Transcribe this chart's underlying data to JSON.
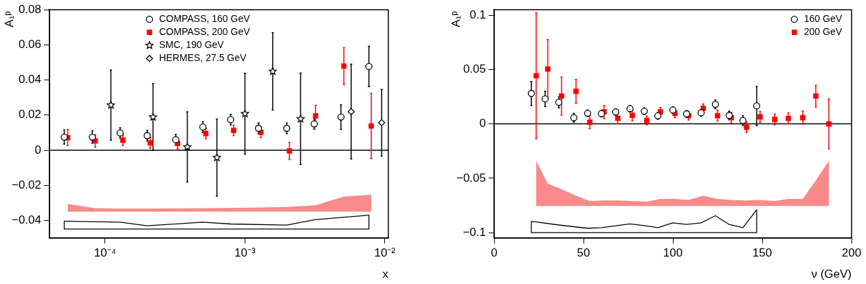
{
  "chart_data": [
    {
      "type": "scatter",
      "xlabel": "x",
      "ylabel": "A₁ᵖ",
      "log": "x",
      "xlim": [
        4e-05,
        0.0106
      ],
      "ylim": [
        -0.05,
        0.08
      ],
      "xticks": [
        {
          "value": 0.0001,
          "label": "10⁻⁴"
        },
        {
          "value": 0.001,
          "label": "10⁻³"
        },
        {
          "value": 0.01,
          "label": "10⁻²"
        }
      ],
      "yticks": [
        {
          "value": -0.04,
          "label": "−0.04"
        },
        {
          "value": -0.02,
          "label": "−0.02"
        },
        0,
        0.02,
        0.04,
        0.06,
        0.08
      ],
      "legend": "top",
      "ref_lines": [
        {
          "axis": "y",
          "value": 0
        }
      ],
      "series": [
        {
          "name": "COMPASS, 160 GeV",
          "color": "#000000",
          "marker": "circle",
          "x": [
            5.1e-05,
            8.1e-05,
            0.000128,
            0.0002,
            0.00032,
            0.0005,
            0.00079,
            0.00125,
            0.00199,
            0.00313,
            0.00486,
            0.0077
          ],
          "values": [
            0.0075,
            0.0075,
            0.0098,
            0.0083,
            0.006,
            0.0132,
            0.0174,
            0.0125,
            0.0125,
            0.015,
            0.0189,
            0.0477
          ],
          "errors": [
            0.004,
            0.0035,
            0.003,
            0.003,
            0.003,
            0.003,
            0.003,
            0.003,
            0.003,
            0.003,
            0.007,
            0.0115
          ]
        },
        {
          "name": "COMPASS, 200 GeV",
          "color": "#ff0000",
          "marker": "square",
          "x": [
            5.4e-05,
            8.5e-05,
            0.000134,
            0.00021,
            0.00033,
            0.000525,
            0.00083,
            0.0013,
            0.00208,
            0.0032,
            0.0051,
            0.008
          ],
          "values": [
            0.0072,
            0.0053,
            0.0057,
            0.0042,
            0.0038,
            0.0094,
            0.0113,
            0.0102,
            -0.0004,
            0.0196,
            0.0479,
            0.0138
          ],
          "errors": [
            0.0045,
            0.0035,
            0.003,
            0.003,
            0.003,
            0.003,
            0.003,
            0.003,
            0.0049,
            0.006,
            0.0105,
            0.0186
          ]
        },
        {
          "name": "SMC, 190 GeV",
          "color": "#000000",
          "marker": "star",
          "x": [
            0.00011,
            0.00022,
            0.000387,
            0.00063,
            0.001,
            0.00158,
            0.0025
          ],
          "values": [
            0.0257,
            0.0189,
            0.0019,
            -0.0042,
            0.0208,
            0.0449,
            0.0179
          ],
          "errors": [
            0.02,
            0.019,
            0.02,
            0.022,
            0.023,
            0.022,
            0.026
          ]
        },
        {
          "name": "HERMES, 27.5 GeV",
          "color": "#000000",
          "marker": "diamond",
          "x": [
            0.00575,
            0.0095
          ],
          "values": [
            0.022,
            0.0157
          ],
          "errors": [
            0.027,
            0.019
          ]
        },
        {
          "type": "area",
          "color": "#f88a8a",
          "x": [
            5.4e-05,
            8.5e-05,
            0.000134,
            0.00021,
            0.00033,
            0.000525,
            0.00083,
            0.0013,
            0.00208,
            0.0032,
            0.0051,
            0.008
          ],
          "values": [
            null,
            null,
            null,
            null,
            null,
            null,
            null,
            null,
            null,
            null,
            null,
            null
          ],
          "upper": [
            -0.0306,
            -0.033,
            -0.0332,
            -0.0332,
            -0.0331,
            -0.033,
            -0.0328,
            -0.0326,
            -0.0322,
            -0.0313,
            -0.0264,
            -0.0253
          ],
          "lower": [
            -0.035,
            -0.035,
            -0.035,
            -0.035,
            -0.035,
            -0.035,
            -0.035,
            -0.035,
            -0.035,
            -0.035,
            -0.035,
            -0.035
          ]
        },
        {
          "type": "line",
          "color": "#000000",
          "x": [
            5.1e-05,
            0.000128,
            0.0002,
            0.0005,
            0.00079,
            0.00199,
            0.00313,
            0.0077
          ],
          "values": [
            -0.0404,
            -0.041,
            -0.043,
            -0.041,
            -0.042,
            -0.0426,
            -0.0396,
            -0.037
          ]
        },
        {
          "type": "line",
          "color": "#000000",
          "x": [
            5.1e-05,
            0.0077
          ],
          "values": [
            -0.0449,
            -0.0449
          ]
        },
        {
          "type": "line",
          "color": "#000000",
          "x": [
            5.1e-05,
            5.1e-05
          ],
          "values": [
            -0.0404,
            -0.0449
          ]
        },
        {
          "type": "line",
          "color": "#000000",
          "x": [
            0.0077,
            0.0077
          ],
          "values": [
            -0.037,
            -0.0449
          ]
        }
      ]
    },
    {
      "type": "scatter",
      "xlabel": "ν (GeV)",
      "ylabel": "A₁ᵖ",
      "xlim": [
        0,
        200
      ],
      "ylim": [
        -0.105,
        0.105
      ],
      "xticks": [
        0,
        50,
        100,
        150,
        200
      ],
      "yticks": [
        {
          "value": -0.1,
          "label": "−0.1"
        },
        {
          "value": -0.05,
          "label": "−0.05"
        },
        0,
        0.05,
        0.1
      ],
      "legend": "top right",
      "ref_lines": [
        {
          "axis": "y",
          "value": 0
        }
      ],
      "series": [
        {
          "name": "160 GeV",
          "color": "#000000",
          "marker": "circle",
          "x": [
            20.8,
            28.5,
            36.2,
            44.6,
            52.3,
            60,
            68,
            76,
            84,
            91.6,
            100,
            107.7,
            115.8,
            123.8,
            131.5,
            139.2,
            146.9
          ],
          "values": [
            0.028,
            0.023,
            0.0198,
            0.0057,
            0.0098,
            0.0094,
            0.011,
            0.014,
            0.0117,
            0.0074,
            0.0127,
            0.0092,
            0.0102,
            0.018,
            0.0078,
            0.0031,
            0.0165
          ],
          "errors": [
            0.011,
            0.007,
            0.005,
            0.004,
            0.003,
            0.003,
            0.003,
            0.003,
            0.003,
            0.003,
            0.003,
            0.003,
            0.003,
            0.004,
            0.004,
            0.0045,
            0.018
          ]
        },
        {
          "name": "200 GeV",
          "color": "#ff0000",
          "marker": "square",
          "x": [
            23.5,
            30,
            37.7,
            45.8,
            53.5,
            61.5,
            69.2,
            77.3,
            85.4,
            93,
            101.2,
            108.8,
            117,
            125,
            132.7,
            141.2,
            148.8,
            157,
            164.6,
            172.7,
            180,
            187.3
          ],
          "values": [
            0.0443,
            0.0505,
            0.0256,
            0.03,
            0.0016,
            0.011,
            0.0051,
            0.0078,
            0.0031,
            0.011,
            0.0098,
            0.0076,
            0.0143,
            0.0076,
            0.0057,
            -0.003,
            0.0065,
            0.0041,
            0.0051,
            0.0057,
            0.0256,
            0
          ],
          "errors": [
            0.058,
            0.027,
            0.0175,
            0.011,
            0.006,
            0.006,
            0.005,
            0.005,
            0.004,
            0.004,
            0.004,
            0.004,
            0.004,
            0.005,
            0.005,
            0.005,
            0.005,
            0.005,
            0.005,
            0.006,
            0.01,
            0.023
          ]
        },
        {
          "type": "area",
          "color": "#f88a8a",
          "x": [
            23.5,
            30,
            37.7,
            45.8,
            53.5,
            61.5,
            69.2,
            77.3,
            85.4,
            93,
            101.2,
            108.8,
            117,
            125,
            132.7,
            141.2,
            148.8,
            157,
            164.6,
            172.7,
            180,
            187.3
          ],
          "values": [
            null,
            null,
            null,
            null,
            null,
            null,
            null,
            null,
            null,
            null,
            null,
            null,
            null,
            null,
            null,
            null,
            null,
            null,
            null,
            null,
            null,
            null
          ],
          "upper": [
            -0.034,
            -0.055,
            -0.06,
            -0.066,
            -0.071,
            -0.0705,
            -0.0705,
            -0.071,
            -0.0715,
            -0.069,
            -0.069,
            -0.07,
            -0.066,
            -0.069,
            -0.07,
            -0.0705,
            -0.07,
            -0.071,
            -0.069,
            -0.069,
            -0.052,
            -0.034
          ],
          "lower": [
            -0.0755,
            -0.0755,
            -0.0755,
            -0.0755,
            -0.0755,
            -0.0755,
            -0.0755,
            -0.0755,
            -0.0755,
            -0.0755,
            -0.0755,
            -0.0755,
            -0.0755,
            -0.0755,
            -0.0755,
            -0.0755,
            -0.0755,
            -0.0755,
            -0.0755,
            -0.0755,
            -0.0755,
            -0.0755
          ]
        },
        {
          "type": "line",
          "color": "#000000",
          "x": [
            20.8,
            36.2,
            52.3,
            60,
            76,
            84,
            91.6,
            100,
            107.7,
            115.8,
            123.8,
            131.5,
            139.2,
            146.9
          ],
          "values": [
            -0.0896,
            -0.093,
            -0.096,
            -0.0955,
            -0.092,
            -0.0935,
            -0.0955,
            -0.091,
            -0.0925,
            -0.091,
            -0.0845,
            -0.0925,
            -0.0955,
            -0.079
          ]
        },
        {
          "type": "line",
          "color": "#000000",
          "x": [
            20.8,
            146.9
          ],
          "values": [
            -0.1,
            -0.1
          ]
        },
        {
          "type": "line",
          "color": "#000000",
          "x": [
            20.8,
            20.8
          ],
          "values": [
            -0.0896,
            -0.1
          ]
        },
        {
          "type": "line",
          "color": "#000000",
          "x": [
            146.9,
            146.9
          ],
          "values": [
            -0.079,
            -0.1
          ]
        }
      ]
    }
  ]
}
